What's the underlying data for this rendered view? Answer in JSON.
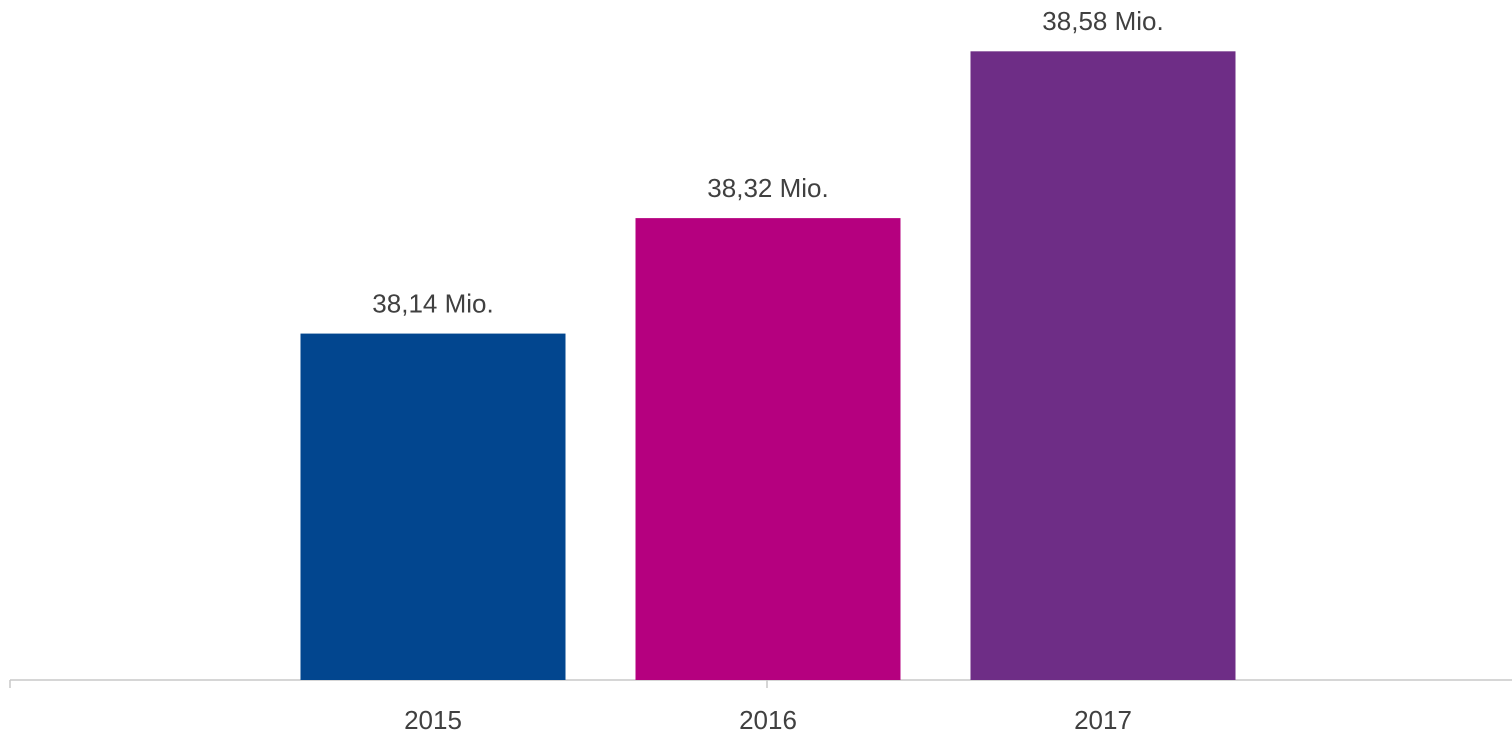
{
  "chart_data": {
    "type": "bar",
    "categories": [
      "2015",
      "2016",
      "2017"
    ],
    "values": [
      38.14,
      38.32,
      38.58
    ],
    "value_labels": [
      "38,14 Mio.",
      "38,32 Mio.",
      "38,58 Mio."
    ],
    "colors": [
      "#02468f",
      "#b5007f",
      "#6e2d86"
    ],
    "ylim": [
      37.6,
      38.66
    ]
  }
}
